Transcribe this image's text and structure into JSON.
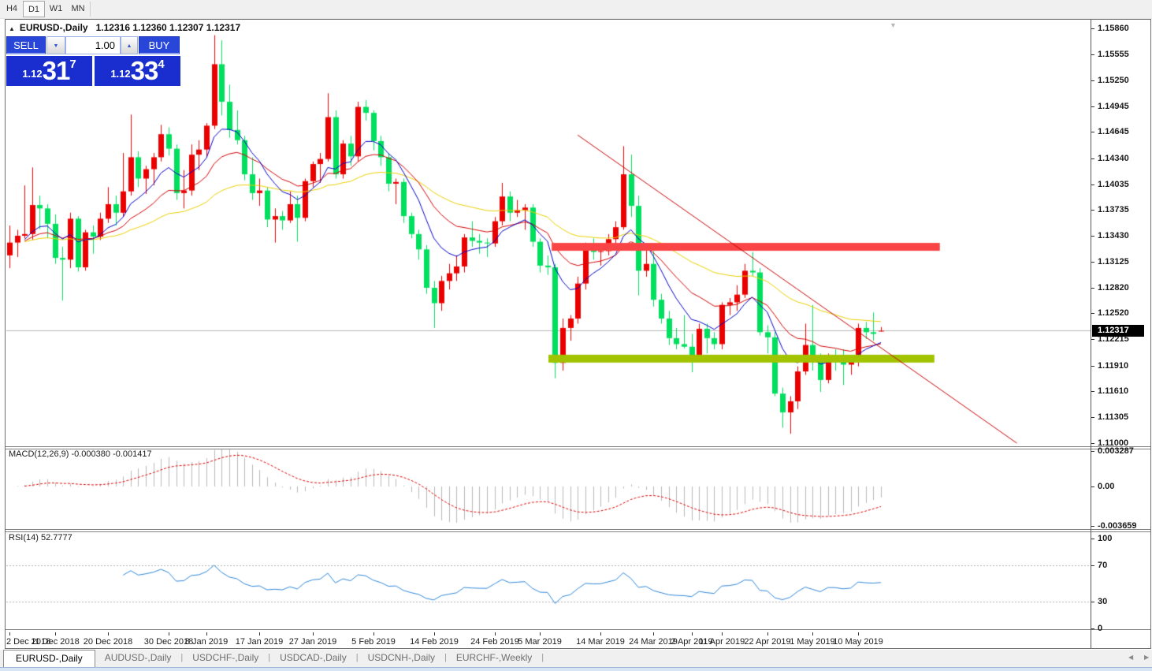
{
  "toolbar": {
    "timeframes": [
      "H4",
      "D1",
      "W1",
      "MN"
    ],
    "active": "D1"
  },
  "chart_header": {
    "collapse_icon": "▲",
    "symbol": "EURUSD-,Daily",
    "ohlc_text": "1.12316 1.12360 1.12307 1.12317"
  },
  "trade_panel": {
    "sell_label": "SELL",
    "buy_label": "BUY",
    "volume": "1.00",
    "spin_down_icon": "▼",
    "spin_up_icon": "▲",
    "sell_quote": {
      "prefix": "1.12",
      "big": "31",
      "sup": "7"
    },
    "buy_quote": {
      "prefix": "1.12",
      "big": "33",
      "sup": "4"
    }
  },
  "price_axis": {
    "labels": [
      "1.15860",
      "1.15555",
      "1.15250",
      "1.14945",
      "1.14645",
      "1.14340",
      "1.14035",
      "1.13735",
      "1.13430",
      "1.13125",
      "1.12820",
      "1.12520",
      "1.12215",
      "1.11910",
      "1.11610",
      "1.11305",
      "1.11000"
    ],
    "current_label": "1.12317"
  },
  "macd_panel": {
    "label": "MACD(12,26,9) -0.000380 -0.001417",
    "axis_labels": [
      "0.003287",
      "0.00",
      "-0.003659"
    ]
  },
  "rsi_panel": {
    "label": "RSI(14) 52.7777",
    "axis_labels": [
      "100",
      "70",
      "30",
      "0"
    ]
  },
  "tabs": {
    "items": [
      "EURUSD-,Daily",
      "AUDUSD-,Daily",
      "USDCHF-,Daily",
      "USDCAD-,Daily",
      "USDCNH-,Daily",
      "EURCHF-,Weekly"
    ],
    "active_index": 0,
    "left_arrow_icon": "◀",
    "right_arrow_icon": "▶"
  },
  "autoscroll_icon": "▼",
  "chart_data": {
    "type": "candlestick",
    "title": "EURUSD-,Daily",
    "timeframe": "D1",
    "ohlc_display": [
      1.12316,
      1.1236,
      1.12307,
      1.12317
    ],
    "current_price": 1.12317,
    "price_range": [
      1.11,
      1.1586
    ],
    "colors": {
      "up_candle": "#eb0000",
      "down_candle": "#00e05e",
      "ma_fast_blue": "#0000c8",
      "ma_mid_red": "#d40000",
      "ma_slow_yellow": "#e8cf00",
      "resistance_bar": "#f94545",
      "support_bar": "#a2c400",
      "trendline": "#c80000",
      "current_price_line": "#b4b4b4",
      "macd_histogram": "#b9b9b9",
      "macd_signal": "#e00000",
      "rsi_line": "#2e86d9",
      "rsi_levels": "#b0b0b0"
    },
    "candles": [
      [
        1.132,
        1.1355,
        1.1305,
        1.1335
      ],
      [
        1.1335,
        1.135,
        1.1318,
        1.1343
      ],
      [
        1.1343,
        1.1402,
        1.134,
        1.1345
      ],
      [
        1.1345,
        1.1423,
        1.1338,
        1.1379
      ],
      [
        1.1379,
        1.139,
        1.1351,
        1.1375
      ],
      [
        1.1375,
        1.138,
        1.134,
        1.1357
      ],
      [
        1.1357,
        1.1368,
        1.131,
        1.1317
      ],
      [
        1.1317,
        1.133,
        1.1267,
        1.1315
      ],
      [
        1.1315,
        1.137,
        1.1305,
        1.1363
      ],
      [
        1.1363,
        1.1366,
        1.1301,
        1.1306
      ],
      [
        1.1306,
        1.135,
        1.1302,
        1.1347
      ],
      [
        1.1347,
        1.1355,
        1.1322,
        1.1342
      ],
      [
        1.1342,
        1.137,
        1.1338,
        1.1363
      ],
      [
        1.1363,
        1.14,
        1.1358,
        1.138
      ],
      [
        1.138,
        1.139,
        1.1355,
        1.137
      ],
      [
        1.137,
        1.144,
        1.1365,
        1.1395
      ],
      [
        1.1395,
        1.1485,
        1.139,
        1.1435
      ],
      [
        1.1435,
        1.1442,
        1.14,
        1.141
      ],
      [
        1.141,
        1.1425,
        1.1392,
        1.1421
      ],
      [
        1.1421,
        1.144,
        1.1402,
        1.1435
      ],
      [
        1.1435,
        1.1473,
        1.143,
        1.1462
      ],
      [
        1.1462,
        1.147,
        1.1437,
        1.1445
      ],
      [
        1.1445,
        1.145,
        1.1385,
        1.1393
      ],
      [
        1.1393,
        1.142,
        1.1375,
        1.1396
      ],
      [
        1.1396,
        1.145,
        1.139,
        1.1438
      ],
      [
        1.1438,
        1.1455,
        1.142,
        1.1444
      ],
      [
        1.1444,
        1.1475,
        1.1435,
        1.1472
      ],
      [
        1.1472,
        1.1578,
        1.1468,
        1.1544
      ],
      [
        1.1544,
        1.1572,
        1.1484,
        1.15
      ],
      [
        1.15,
        1.152,
        1.1458,
        1.1467
      ],
      [
        1.1467,
        1.149,
        1.145,
        1.1455
      ],
      [
        1.1455,
        1.146,
        1.1408,
        1.1415
      ],
      [
        1.1415,
        1.1435,
        1.1385,
        1.1393
      ],
      [
        1.1393,
        1.141,
        1.1378,
        1.1396
      ],
      [
        1.1396,
        1.14,
        1.1353,
        1.1362
      ],
      [
        1.1362,
        1.1375,
        1.1335,
        1.1366
      ],
      [
        1.1366,
        1.1372,
        1.135,
        1.1361
      ],
      [
        1.1361,
        1.1395,
        1.1358,
        1.138
      ],
      [
        1.138,
        1.139,
        1.1336,
        1.1364
      ],
      [
        1.1364,
        1.141,
        1.136,
        1.1407
      ],
      [
        1.1407,
        1.143,
        1.14,
        1.1427
      ],
      [
        1.1427,
        1.144,
        1.1405,
        1.1433
      ],
      [
        1.1433,
        1.151,
        1.143,
        1.1482
      ],
      [
        1.1482,
        1.149,
        1.141,
        1.1415
      ],
      [
        1.1415,
        1.1455,
        1.141,
        1.1451
      ],
      [
        1.1451,
        1.146,
        1.1425,
        1.1436
      ],
      [
        1.1436,
        1.15,
        1.143,
        1.1494
      ],
      [
        1.1494,
        1.1502,
        1.1478,
        1.1487
      ],
      [
        1.1487,
        1.149,
        1.1443,
        1.1454
      ],
      [
        1.1454,
        1.146,
        1.1425,
        1.1435
      ],
      [
        1.1435,
        1.144,
        1.1395,
        1.1404
      ],
      [
        1.1404,
        1.141,
        1.138,
        1.1406
      ],
      [
        1.1406,
        1.141,
        1.1358,
        1.1366
      ],
      [
        1.1366,
        1.137,
        1.134,
        1.1345
      ],
      [
        1.1345,
        1.135,
        1.1315,
        1.1327
      ],
      [
        1.1327,
        1.1332,
        1.1275,
        1.1282
      ],
      [
        1.1282,
        1.129,
        1.1235,
        1.1264
      ],
      [
        1.1264,
        1.1296,
        1.1255,
        1.129
      ],
      [
        1.129,
        1.131,
        1.128,
        1.1299
      ],
      [
        1.1299,
        1.132,
        1.129,
        1.1307
      ],
      [
        1.1307,
        1.1345,
        1.13,
        1.1341
      ],
      [
        1.1341,
        1.136,
        1.133,
        1.1337
      ],
      [
        1.1337,
        1.1345,
        1.1322,
        1.1335
      ],
      [
        1.1335,
        1.134,
        1.1318,
        1.1334
      ],
      [
        1.1334,
        1.1365,
        1.133,
        1.136
      ],
      [
        1.136,
        1.1405,
        1.1355,
        1.1389
      ],
      [
        1.1389,
        1.1395,
        1.136,
        1.137
      ],
      [
        1.137,
        1.1385,
        1.1365,
        1.1373
      ],
      [
        1.1373,
        1.138,
        1.135,
        1.1376
      ],
      [
        1.1376,
        1.138,
        1.133,
        1.1336
      ],
      [
        1.1336,
        1.134,
        1.13,
        1.1308
      ],
      [
        1.1308,
        1.132,
        1.1297,
        1.1306
      ],
      [
        1.1306,
        1.131,
        1.1176,
        1.1194
      ],
      [
        1.1194,
        1.1246,
        1.1185,
        1.1235
      ],
      [
        1.1235,
        1.125,
        1.122,
        1.1246
      ],
      [
        1.1246,
        1.1295,
        1.124,
        1.1287
      ],
      [
        1.1287,
        1.1335,
        1.128,
        1.1328
      ],
      [
        1.1328,
        1.134,
        1.1315,
        1.1324
      ],
      [
        1.1324,
        1.133,
        1.1308,
        1.1325
      ],
      [
        1.1325,
        1.1345,
        1.132,
        1.1339
      ],
      [
        1.1339,
        1.136,
        1.1333,
        1.1353
      ],
      [
        1.1353,
        1.1448,
        1.135,
        1.1415
      ],
      [
        1.1415,
        1.1438,
        1.1365,
        1.1378
      ],
      [
        1.1378,
        1.139,
        1.1273,
        1.1302
      ],
      [
        1.1302,
        1.133,
        1.1295,
        1.131
      ],
      [
        1.131,
        1.1325,
        1.126,
        1.1268
      ],
      [
        1.1268,
        1.1275,
        1.124,
        1.1246
      ],
      [
        1.1246,
        1.1255,
        1.1215,
        1.1223
      ],
      [
        1.1223,
        1.1235,
        1.121,
        1.1216
      ],
      [
        1.1216,
        1.125,
        1.1211,
        1.1213
      ],
      [
        1.1213,
        1.1228,
        1.1183,
        1.1203
      ],
      [
        1.1203,
        1.124,
        1.12,
        1.1234
      ],
      [
        1.1234,
        1.124,
        1.1205,
        1.1223
      ],
      [
        1.1223,
        1.123,
        1.121,
        1.1216
      ],
      [
        1.1216,
        1.1265,
        1.121,
        1.1262
      ],
      [
        1.1262,
        1.127,
        1.125,
        1.1265
      ],
      [
        1.1265,
        1.1285,
        1.1255,
        1.1274
      ],
      [
        1.1274,
        1.131,
        1.127,
        1.1302
      ],
      [
        1.1302,
        1.1324,
        1.1295,
        1.13
      ],
      [
        1.13,
        1.1305,
        1.1226,
        1.123
      ],
      [
        1.123,
        1.1238,
        1.1205,
        1.1224
      ],
      [
        1.1224,
        1.123,
        1.1155,
        1.1158
      ],
      [
        1.1158,
        1.1165,
        1.1118,
        1.1136
      ],
      [
        1.1136,
        1.1155,
        1.1111,
        1.1149
      ],
      [
        1.1149,
        1.119,
        1.114,
        1.1184
      ],
      [
        1.1184,
        1.124,
        1.118,
        1.1215
      ],
      [
        1.1215,
        1.1262,
        1.1185,
        1.1195
      ],
      [
        1.1195,
        1.1205,
        1.116,
        1.1174
      ],
      [
        1.1174,
        1.1205,
        1.117,
        1.1202
      ],
      [
        1.1202,
        1.121,
        1.1185,
        1.1201
      ],
      [
        1.1201,
        1.121,
        1.1168,
        1.1192
      ],
      [
        1.1192,
        1.12,
        1.118,
        1.1196
      ],
      [
        1.1196,
        1.124,
        1.119,
        1.1235
      ],
      [
        1.1235,
        1.1242,
        1.1222,
        1.123
      ],
      [
        1.123,
        1.1253,
        1.122,
        1.1228
      ],
      [
        1.12316,
        1.1236,
        1.12307,
        1.12317
      ]
    ],
    "date_ticks": [
      {
        "index": 0,
        "label": "2 Dec 2018"
      },
      {
        "index": 6,
        "label": "11 Dec 2018"
      },
      {
        "index": 13,
        "label": "20 Dec 2018"
      },
      {
        "index": 21,
        "label": "30 Dec 2018"
      },
      {
        "index": 26,
        "label": "8 Jan 2019"
      },
      {
        "index": 33,
        "label": "17 Jan 2019"
      },
      {
        "index": 40,
        "label": "27 Jan 2019"
      },
      {
        "index": 48,
        "label": "5 Feb 2019"
      },
      {
        "index": 56,
        "label": "14 Feb 2019"
      },
      {
        "index": 64,
        "label": "24 Feb 2019"
      },
      {
        "index": 70,
        "label": "5 Mar 2019"
      },
      {
        "index": 78,
        "label": "14 Mar 2019"
      },
      {
        "index": 85,
        "label": "24 Mar 2019"
      },
      {
        "index": 90,
        "label": "2 Apr 2019"
      },
      {
        "index": 94,
        "label": "11 Apr 2019"
      },
      {
        "index": 100,
        "label": "22 Apr 2019"
      },
      {
        "index": 106,
        "label": "1 May 2019"
      },
      {
        "index": 112,
        "label": "10 May 2019"
      }
    ],
    "moving_averages": [
      {
        "name": "fast",
        "period": 8,
        "color_key": "ma_fast_blue"
      },
      {
        "name": "mid",
        "period": 17,
        "color_key": "ma_mid_red"
      },
      {
        "name": "slow",
        "period": 40,
        "color_key": "ma_slow_yellow"
      }
    ],
    "overlays": {
      "resistance": {
        "price": 1.133,
        "x1_frac": 0.503,
        "x2_frac": 0.861,
        "thickness": 10
      },
      "support": {
        "price": 1.1199,
        "x1_frac": 0.5,
        "x2_frac": 0.856,
        "thickness": 10
      },
      "trendline": {
        "x1_frac": 0.527,
        "price1": 1.1461,
        "x2_frac": 0.932,
        "price2": 1.11
      }
    },
    "indicators": {
      "macd": {
        "params": [
          12,
          26,
          9
        ],
        "value": -0.00038,
        "signal": -0.001417,
        "axis_max": 0.003287,
        "axis_min": -0.003659
      },
      "rsi": {
        "period": 14,
        "value": 52.7777,
        "levels": [
          70,
          30
        ],
        "axis_range": [
          0,
          100
        ]
      }
    }
  }
}
